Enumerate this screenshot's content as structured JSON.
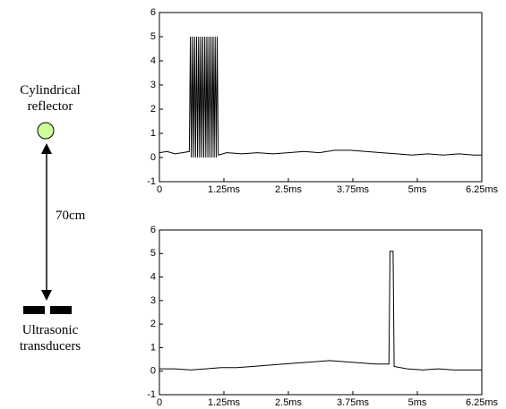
{
  "diagram": {
    "reflector_label": [
      "Cylindrical",
      "reflector"
    ],
    "distance_label": "70cm",
    "transducer_label": [
      "Ultrasonic",
      "transducers"
    ]
  },
  "chart_data": [
    {
      "type": "line",
      "xlim": [
        0,
        6.25
      ],
      "ylim": [
        -1,
        6
      ],
      "xticks": [
        0,
        {
          "value": 1.25,
          "label": "1.25ms"
        },
        {
          "value": 2.5,
          "label": "2.5ms"
        },
        {
          "value": 3.75,
          "label": "3.75ms"
        },
        {
          "value": 5,
          "label": "5ms"
        },
        {
          "value": 6.25,
          "label": "6.25ms"
        }
      ],
      "yticks": [
        -1,
        0,
        1,
        2,
        3,
        4,
        5,
        6
      ],
      "series": [
        {
          "color": "#000000",
          "x": [
            0,
            0.15,
            0.3,
            0.45,
            0.58,
            0.6,
            0.62,
            0.64,
            0.66,
            0.68,
            0.7,
            0.72,
            0.74,
            0.76,
            0.78,
            0.8,
            0.82,
            0.84,
            0.86,
            0.88,
            0.9,
            0.92,
            0.94,
            0.96,
            0.98,
            1.0,
            1.02,
            1.04,
            1.06,
            1.08,
            1.1,
            1.12,
            1.14,
            1.3,
            1.6,
            1.9,
            2.2,
            2.5,
            2.8,
            3.1,
            3.4,
            3.7,
            4.0,
            4.3,
            4.6,
            4.9,
            5.2,
            5.5,
            5.8,
            6.1,
            6.25
          ],
          "values": [
            0.2,
            0.25,
            0.15,
            0.2,
            0.25,
            5,
            0,
            5,
            0,
            5,
            0,
            5,
            0,
            5,
            0,
            5,
            0,
            5,
            0,
            5,
            0,
            5,
            0,
            5,
            0,
            5,
            0,
            5,
            0,
            5,
            0,
            5,
            0.1,
            0.2,
            0.15,
            0.2,
            0.15,
            0.2,
            0.25,
            0.2,
            0.3,
            0.3,
            0.25,
            0.2,
            0.15,
            0.1,
            0.15,
            0.1,
            0.15,
            0.1,
            0.1
          ]
        }
      ]
    },
    {
      "type": "line",
      "xlim": [
        0,
        6.25
      ],
      "ylim": [
        -1,
        6
      ],
      "xticks": [
        0,
        {
          "value": 1.25,
          "label": "1.25ms"
        },
        {
          "value": 2.5,
          "label": "2.5ms"
        },
        {
          "value": 3.75,
          "label": "3.75ms"
        },
        {
          "value": 5,
          "label": "5ms"
        },
        {
          "value": 6.25,
          "label": "6.25ms"
        }
      ],
      "yticks": [
        -1,
        0,
        1,
        2,
        3,
        4,
        5,
        6
      ],
      "series": [
        {
          "color": "#000000",
          "x": [
            0,
            0.3,
            0.6,
            0.9,
            1.2,
            1.5,
            1.8,
            2.1,
            2.4,
            2.7,
            3.0,
            3.3,
            3.6,
            3.9,
            4.2,
            4.45,
            4.47,
            4.53,
            4.55,
            4.8,
            5.1,
            5.4,
            5.7,
            6.0,
            6.25
          ],
          "values": [
            0.1,
            0.1,
            0.05,
            0.1,
            0.15,
            0.15,
            0.2,
            0.25,
            0.3,
            0.35,
            0.4,
            0.45,
            0.4,
            0.35,
            0.3,
            0.3,
            5.1,
            5.1,
            0.2,
            0.1,
            0.05,
            0.1,
            0.05,
            0.05,
            0.05
          ]
        }
      ]
    }
  ]
}
